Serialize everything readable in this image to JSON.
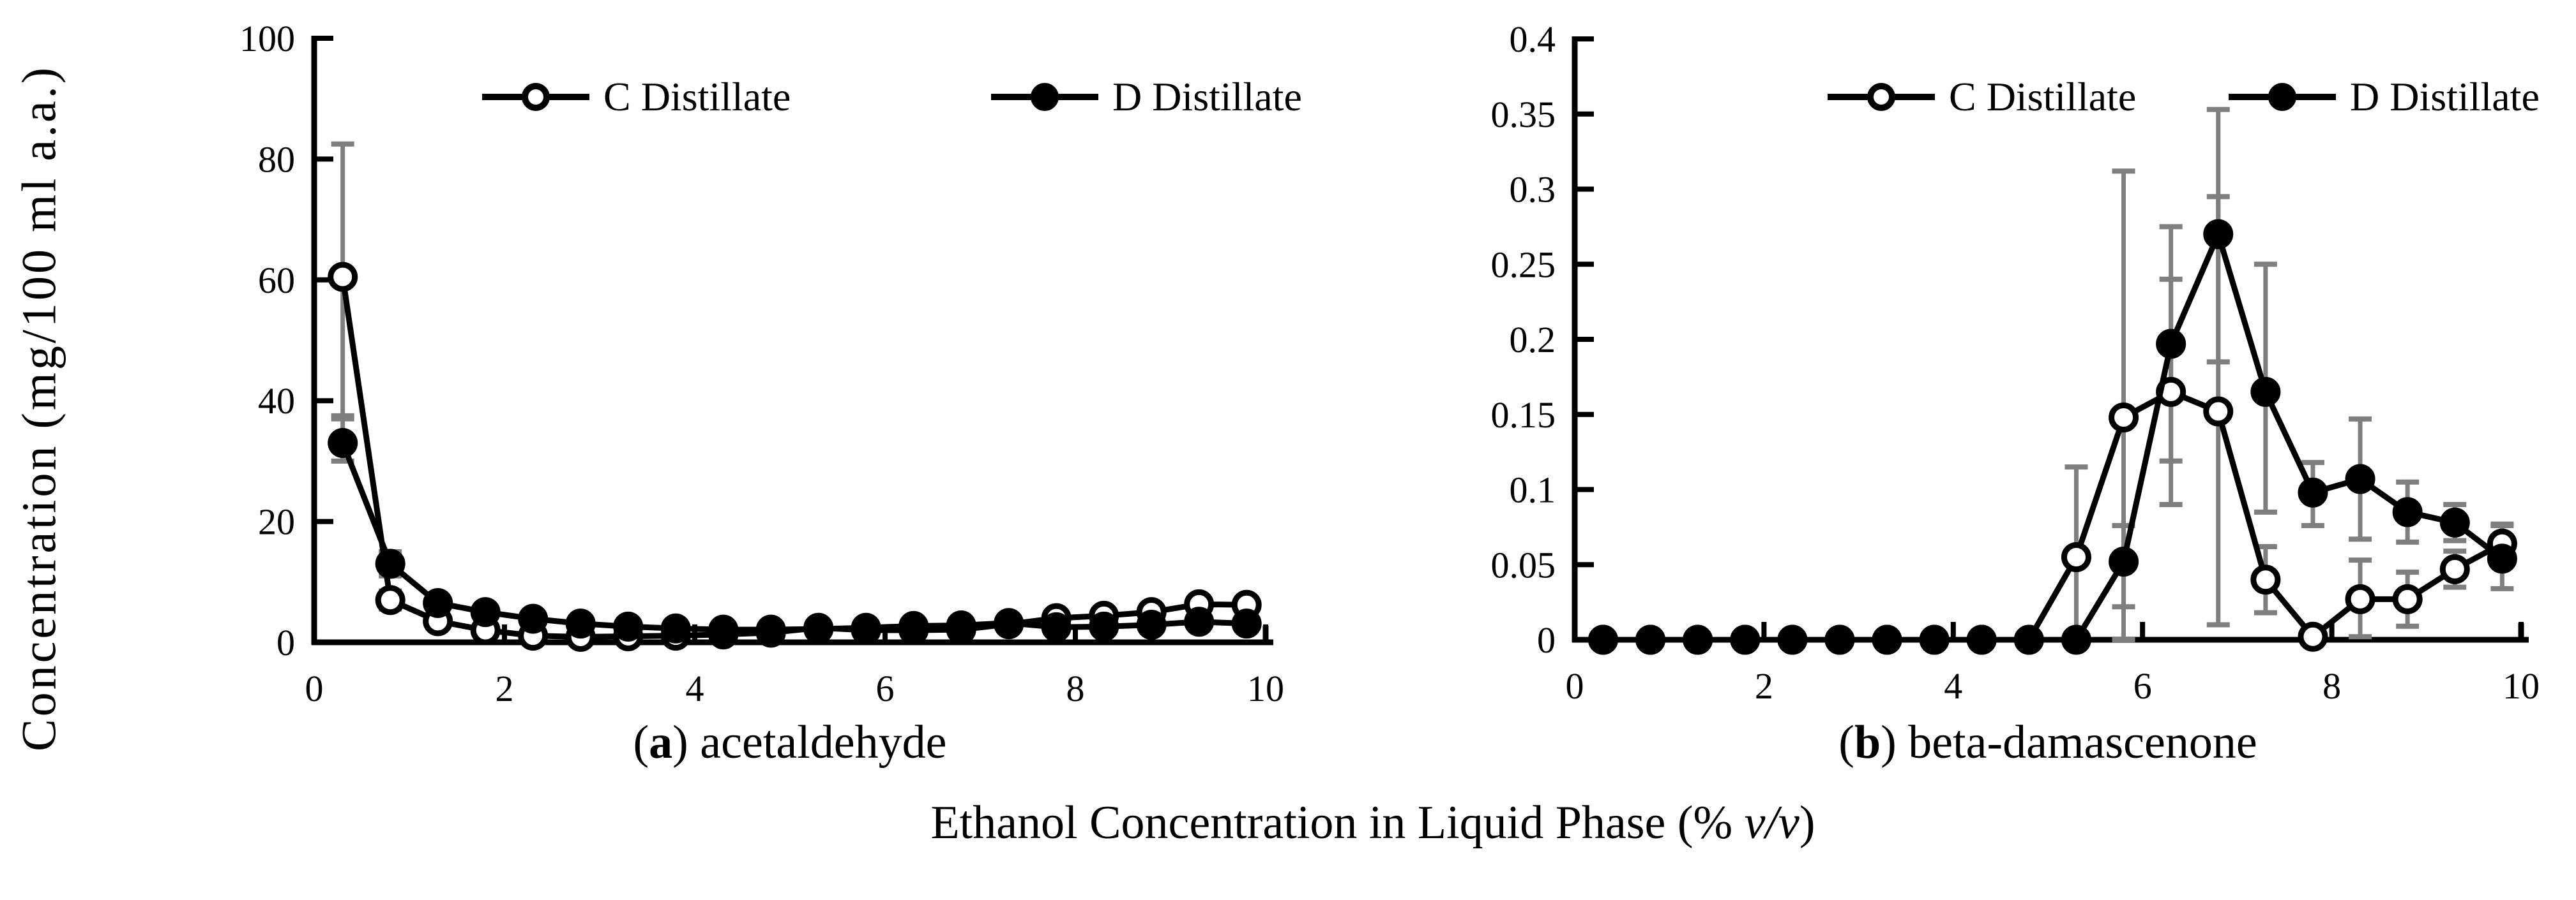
{
  "figure": {
    "y_axis_label": "Concentration (mg/100 ml a.a.)",
    "x_axis_label_prefix": "Ethanol Concentration in Liquid Phase (% ",
    "x_axis_label_italic": "v/v",
    "x_axis_label_suffix": ")",
    "caption_a_open": "(",
    "caption_a_letter": "a",
    "caption_a_rest": ") acetaldehyde",
    "caption_b_open": "(",
    "caption_b_letter": "b",
    "caption_b_rest": ") beta-damascenone",
    "colors": {
      "series": "#000000",
      "error_bars": "#7f7f7f",
      "background": "#ffffff"
    }
  },
  "chart_data": [
    {
      "type": "line",
      "panel": "a",
      "title": "acetaldehyde",
      "ylabel": "Concentration (mg/100 ml a.a.)",
      "xlabel": "Ethanol Concentration in Liquid Phase (% v/v)",
      "xlim": [
        0,
        10
      ],
      "ylim": [
        0,
        100
      ],
      "x_ticks": [
        0,
        2,
        4,
        6,
        8,
        10
      ],
      "y_ticks": [
        0,
        20,
        40,
        60,
        80,
        100
      ],
      "y_tick_labels": [
        "0",
        "20",
        "40",
        "60",
        "80",
        "100"
      ],
      "x": [
        0.3,
        0.8,
        1.3,
        1.8,
        2.3,
        2.8,
        3.3,
        3.8,
        4.3,
        4.8,
        5.3,
        5.8,
        6.3,
        6.8,
        7.3,
        7.8,
        8.3,
        8.8,
        9.3,
        9.8
      ],
      "series": [
        {
          "name": "C Distillate",
          "marker": "open",
          "values": [
            60.5,
            7,
            3.5,
            2,
            1.1,
            0.9,
            1,
            1.1,
            1.3,
            1.6,
            2.4,
            2,
            2,
            2.1,
            3,
            4,
            4.4,
            5,
            6.3,
            6.2
          ],
          "err_up": [
            22,
            1.5,
            1,
            0.8,
            0.5,
            0.4,
            0.4,
            0.4,
            0.4,
            0.5,
            0.5,
            0.5,
            0.5,
            0.5,
            0.6,
            0.8,
            0.8,
            0.9,
            1,
            1
          ],
          "err_dn": [
            23,
            1.5,
            1,
            0.8,
            0.5,
            0.4,
            0.4,
            0.4,
            0.4,
            0.5,
            0.5,
            0.5,
            0.5,
            0.5,
            0.6,
            0.8,
            0.8,
            0.9,
            1,
            1
          ]
        },
        {
          "name": "D Distillate",
          "marker": "filled",
          "values": [
            33,
            13,
            6.5,
            5,
            3.9,
            3.1,
            2.6,
            2.3,
            2.1,
            2.1,
            2.2,
            2.4,
            2.7,
            2.8,
            3.2,
            2.5,
            2.6,
            2.9,
            3.4,
            3.1
          ],
          "err_up": [
            4,
            2,
            1.2,
            1,
            0.8,
            0.6,
            0.5,
            0.5,
            0.5,
            0.5,
            0.5,
            0.5,
            0.5,
            0.5,
            0.5,
            0.5,
            0.5,
            0.5,
            0.6,
            0.6
          ],
          "err_dn": [
            3,
            2,
            1.2,
            1,
            0.8,
            0.6,
            0.5,
            0.5,
            0.5,
            0.5,
            0.5,
            0.5,
            0.5,
            0.5,
            0.5,
            0.5,
            0.5,
            0.5,
            0.6,
            0.6
          ]
        }
      ]
    },
    {
      "type": "line",
      "panel": "b",
      "title": "beta-damascenone",
      "ylabel": "Concentration (mg/100 ml a.a.)",
      "xlabel": "Ethanol Concentration in Liquid Phase (% v/v)",
      "xlim": [
        0,
        10
      ],
      "ylim": [
        0,
        0.4
      ],
      "x_ticks": [
        0,
        2,
        4,
        6,
        8,
        10
      ],
      "y_ticks": [
        0,
        0.05,
        0.1,
        0.15,
        0.2,
        0.25,
        0.3,
        0.35,
        0.4
      ],
      "y_tick_labels": [
        "0",
        "0.05",
        "0.1",
        "0.15",
        "0.2",
        "0.25",
        "0.3",
        "0.35",
        "0.4"
      ],
      "x": [
        0.3,
        0.8,
        1.3,
        1.8,
        2.3,
        2.8,
        3.3,
        3.8,
        4.3,
        4.8,
        5.3,
        5.8,
        6.3,
        6.8,
        7.3,
        7.8,
        8.3,
        8.8,
        9.3,
        9.8
      ],
      "series": [
        {
          "name": "C Distillate",
          "marker": "open",
          "values": [
            0,
            0,
            0,
            0,
            0,
            0,
            0,
            0,
            0,
            0,
            0.055,
            0.148,
            0.165,
            0.152,
            0.04,
            0.002,
            0.027,
            0.027,
            0.047,
            0.064
          ],
          "err_up": [
            0,
            0,
            0,
            0,
            0,
            0,
            0,
            0,
            0,
            0,
            0.06,
            0.164,
            0.075,
            0.143,
            0.022,
            0.004,
            0.026,
            0.018,
            0.012,
            0.013
          ],
          "err_dn": [
            0,
            0,
            0,
            0,
            0,
            0,
            0,
            0,
            0,
            0,
            0.055,
            0.148,
            0.075,
            0.142,
            0.022,
            0.002,
            0.025,
            0.018,
            0.012,
            0.013
          ]
        },
        {
          "name": "D Distillate",
          "marker": "filled",
          "values": [
            0,
            0,
            0,
            0,
            0,
            0,
            0,
            0,
            0,
            0,
            0,
            0.052,
            0.197,
            0.27,
            0.165,
            0.098,
            0.107,
            0.085,
            0.078,
            0.054
          ],
          "err_up": [
            0,
            0,
            0,
            0,
            0,
            0,
            0,
            0,
            0,
            0,
            0,
            0.024,
            0.078,
            0.083,
            0.085,
            0.02,
            0.04,
            0.02,
            0.012,
            0.022
          ],
          "err_dn": [
            0,
            0,
            0,
            0,
            0,
            0,
            0,
            0,
            0,
            0,
            0,
            0.03,
            0.078,
            0.085,
            0.08,
            0.022,
            0.04,
            0.02,
            0.012,
            0.02
          ]
        }
      ]
    }
  ]
}
